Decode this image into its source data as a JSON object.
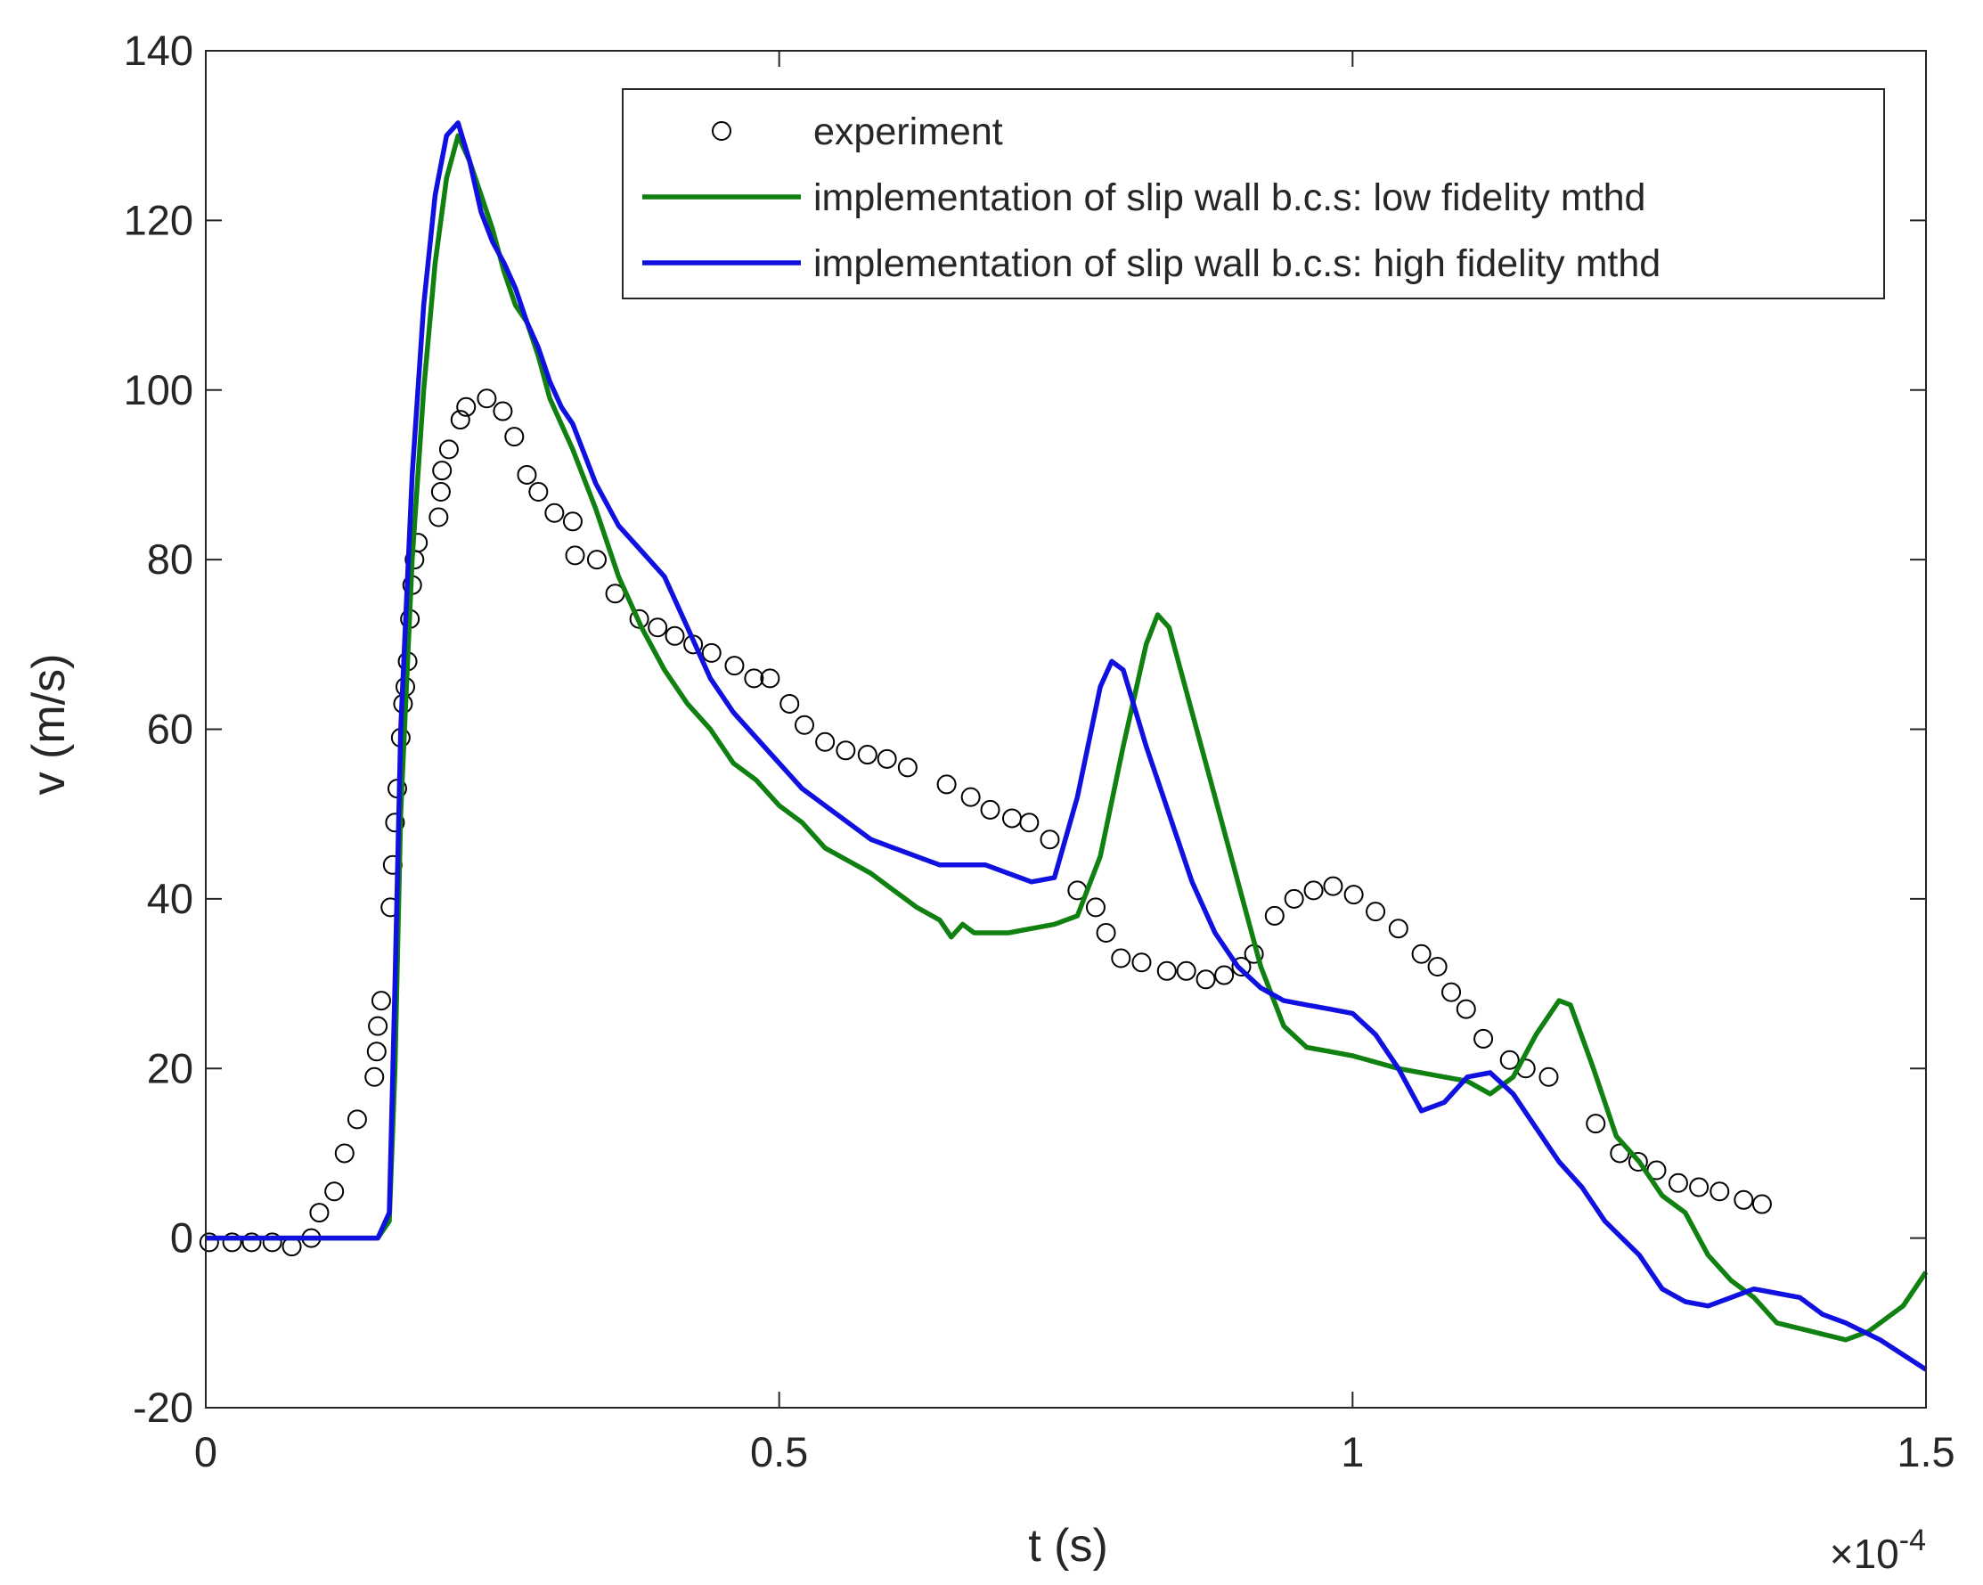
{
  "chart_data": {
    "type": "line",
    "xlabel": "t (s)",
    "ylabel": "v (m/s)",
    "x_multiplier": "×10",
    "x_multiplier_exponent": "-4",
    "xlim": [
      0,
      1.5
    ],
    "xticks": [
      0,
      0.5,
      1,
      1.5
    ],
    "ylim": [
      -20,
      140
    ],
    "yticks": [
      -20,
      0,
      20,
      40,
      60,
      80,
      100,
      120,
      140
    ],
    "grid": false,
    "legend": "upper right",
    "series": [
      {
        "name": "experiment",
        "color": "#000000",
        "style": "marker",
        "x": [
          0.003,
          0.023,
          0.04,
          0.058,
          0.075,
          0.092,
          0.099,
          0.112,
          0.121,
          0.132,
          0.147,
          0.149,
          0.15,
          0.153,
          0.161,
          0.163,
          0.165,
          0.167,
          0.17,
          0.172,
          0.174,
          0.176,
          0.178,
          0.18,
          0.182,
          0.185,
          0.203,
          0.205,
          0.206,
          0.212,
          0.222,
          0.227,
          0.245,
          0.259,
          0.269,
          0.28,
          0.29,
          0.304,
          0.32,
          0.322,
          0.341,
          0.357,
          0.378,
          0.394,
          0.409,
          0.425,
          0.441,
          0.461,
          0.478,
          0.492,
          0.509,
          0.522,
          0.54,
          0.558,
          0.577,
          0.594,
          0.612,
          0.646,
          0.667,
          0.684,
          0.703,
          0.718,
          0.736,
          0.76,
          0.776,
          0.785,
          0.798,
          0.816,
          0.838,
          0.855,
          0.872,
          0.888,
          0.903,
          0.914,
          0.932,
          0.949,
          0.966,
          0.983,
          1.001,
          1.02,
          1.04,
          1.06,
          1.074,
          1.086,
          1.099,
          1.114,
          1.137,
          1.151,
          1.171,
          1.212,
          1.233,
          1.249,
          1.265,
          1.284,
          1.302,
          1.32,
          1.341,
          1.357
        ],
        "values": [
          -0.5,
          -0.5,
          -0.5,
          -0.5,
          -1,
          0,
          3,
          5.5,
          10,
          14,
          19,
          22,
          25,
          28,
          39,
          44,
          49,
          53,
          59,
          63,
          65,
          68,
          73,
          77,
          80,
          82,
          85,
          88,
          90.5,
          93,
          96.5,
          98,
          99,
          97.5,
          94.5,
          90,
          88,
          85.5,
          84.5,
          80.5,
          80,
          76,
          73,
          72,
          71,
          70,
          69,
          67.5,
          66,
          66,
          63,
          60.5,
          58.5,
          57.5,
          57,
          56.5,
          55.5,
          53.5,
          52,
          50.5,
          49.5,
          49,
          47,
          41,
          39,
          36,
          33,
          32.5,
          31.5,
          31.5,
          30.5,
          31,
          32,
          33.5,
          38,
          40,
          41,
          41.5,
          40.5,
          38.5,
          36.5,
          33.5,
          32,
          29,
          27,
          23.5,
          21,
          20,
          19,
          13.5,
          10,
          9,
          8,
          6.5,
          6,
          5.5,
          4.5,
          4
        ]
      },
      {
        "name": "implementation of slip wall b.c.s: low fidelity mthd",
        "color": "#108010",
        "style": "line",
        "x": [
          0,
          0.15,
          0.16,
          0.165,
          0.17,
          0.18,
          0.19,
          0.2,
          0.21,
          0.22,
          0.23,
          0.24,
          0.25,
          0.26,
          0.27,
          0.28,
          0.29,
          0.3,
          0.32,
          0.34,
          0.36,
          0.38,
          0.4,
          0.42,
          0.44,
          0.46,
          0.48,
          0.5,
          0.52,
          0.54,
          0.56,
          0.58,
          0.6,
          0.62,
          0.64,
          0.65,
          0.66,
          0.67,
          0.7,
          0.72,
          0.74,
          0.76,
          0.78,
          0.8,
          0.82,
          0.83,
          0.84,
          0.86,
          0.88,
          0.9,
          0.92,
          0.94,
          0.96,
          0.98,
          1.0,
          1.04,
          1.08,
          1.1,
          1.12,
          1.14,
          1.16,
          1.18,
          1.19,
          1.21,
          1.23,
          1.25,
          1.27,
          1.29,
          1.31,
          1.33,
          1.35,
          1.37,
          1.4,
          1.43,
          1.45,
          1.48,
          1.5
        ],
        "values": [
          0,
          0,
          2,
          20,
          50,
          80,
          100,
          115,
          125,
          130,
          127,
          123,
          119,
          114,
          110,
          108,
          104,
          99,
          93,
          86,
          78,
          72,
          67,
          63,
          60,
          56,
          54,
          51,
          49,
          46,
          44.5,
          43,
          41,
          39,
          37.5,
          35.5,
          37,
          36,
          36,
          36.5,
          37,
          38,
          45,
          58,
          70,
          73.5,
          72,
          62,
          52,
          42,
          32,
          25,
          22.5,
          22,
          21.5,
          20,
          19,
          18.5,
          17,
          19,
          24,
          28,
          27.5,
          20,
          12,
          9,
          5,
          3,
          -2,
          -5,
          -7,
          -10,
          -11,
          -12,
          -11,
          -8,
          -4
        ]
      },
      {
        "name": "implementation of slip wall b.c.s: high fidelity mthd",
        "color": "#1010e0",
        "style": "line",
        "x": [
          0,
          0.15,
          0.16,
          0.165,
          0.17,
          0.18,
          0.19,
          0.2,
          0.21,
          0.22,
          0.23,
          0.24,
          0.25,
          0.26,
          0.27,
          0.28,
          0.29,
          0.3,
          0.31,
          0.32,
          0.34,
          0.36,
          0.38,
          0.4,
          0.42,
          0.44,
          0.46,
          0.48,
          0.5,
          0.52,
          0.54,
          0.56,
          0.58,
          0.6,
          0.62,
          0.64,
          0.66,
          0.68,
          0.7,
          0.72,
          0.74,
          0.76,
          0.78,
          0.79,
          0.8,
          0.82,
          0.84,
          0.86,
          0.88,
          0.9,
          0.92,
          0.94,
          0.96,
          0.98,
          1.0,
          1.02,
          1.04,
          1.06,
          1.08,
          1.1,
          1.12,
          1.14,
          1.16,
          1.18,
          1.2,
          1.22,
          1.25,
          1.27,
          1.29,
          1.31,
          1.33,
          1.35,
          1.37,
          1.39,
          1.41,
          1.43,
          1.46,
          1.5
        ],
        "values": [
          0,
          0,
          3,
          30,
          60,
          90,
          110,
          123,
          130,
          131.5,
          127,
          121,
          117.5,
          115,
          112,
          108,
          105,
          101,
          98,
          96,
          89,
          84,
          81,
          78,
          72,
          66,
          62,
          59,
          56,
          53,
          51,
          49,
          47,
          46,
          45,
          44,
          44,
          44,
          43,
          42,
          42.5,
          52,
          65,
          68,
          67,
          58,
          50,
          42,
          36,
          32,
          29.5,
          28,
          27.5,
          27,
          26.5,
          24,
          20,
          15,
          16,
          19,
          19.5,
          17,
          13,
          9,
          6,
          2,
          -2,
          -6,
          -7.5,
          -8,
          -7,
          -6,
          -6.5,
          -7,
          -9,
          -10,
          -12,
          -15.5
        ]
      }
    ]
  }
}
